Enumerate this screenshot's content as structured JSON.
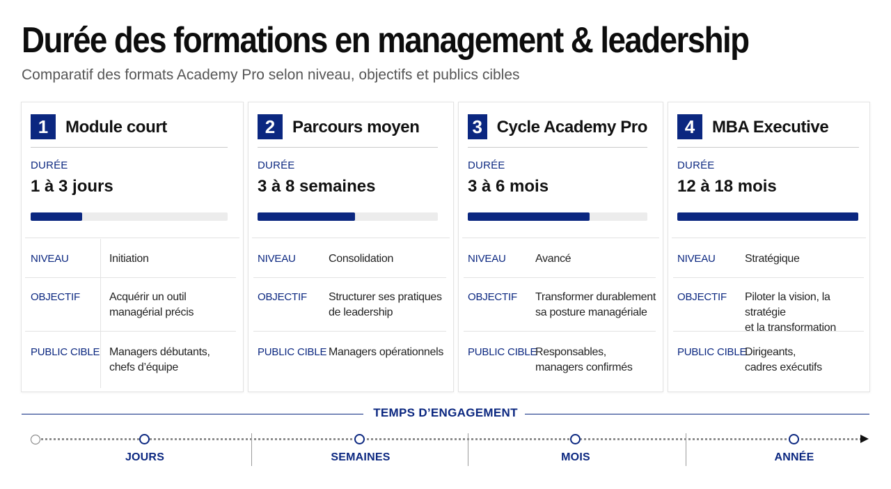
{
  "title": "Durée des formations en management & leadership",
  "subtitle": "Comparatif des formats Academy Pro selon niveau, objectifs et publics cibles",
  "accent_color": "#0b2780",
  "cards": [
    {
      "number": "1",
      "name": "Module court",
      "duration_label": "DURÉE",
      "duration": "1 à 3 jours",
      "duration_fill_fraction": 0.26,
      "rows": [
        {
          "label": "NIVEAU",
          "value": "Initiation"
        },
        {
          "label": "OBJECTIF",
          "value": "Acquérir un outil\nmanagérial précis"
        },
        {
          "label": "PUBLIC CIBLE",
          "value": "Managers débutants,\nchefs d’équipe"
        }
      ]
    },
    {
      "number": "2",
      "name": "Parcours moyen",
      "duration_label": "DURÉE",
      "duration": "3 à 8 semaines",
      "duration_fill_fraction": 0.54,
      "rows": [
        {
          "label": "NIVEAU",
          "value": "Consolidation"
        },
        {
          "label": "OBJECTIF",
          "value": "Structurer ses pratiques\nde leadership"
        },
        {
          "label": "PUBLIC CIBLE",
          "value": "Managers opérationnels"
        }
      ]
    },
    {
      "number": "3",
      "name": "Cycle Academy Pro",
      "duration_label": "DURÉE",
      "duration": "3 à 6 mois",
      "duration_fill_fraction": 0.68,
      "rows": [
        {
          "label": "NIVEAU",
          "value": "Avancé"
        },
        {
          "label": "OBJECTIF",
          "value": "Transformer durablement\nsa posture managériale"
        },
        {
          "label": "PUBLIC CIBLE",
          "value": "Responsables,\nmanagers confirmés"
        }
      ]
    },
    {
      "number": "4",
      "name": "MBA Executive",
      "duration_label": "DURÉE",
      "duration": "12 à 18 mois",
      "duration_fill_fraction": 1.0,
      "rows": [
        {
          "label": "NIVEAU",
          "value": "Stratégique"
        },
        {
          "label": "OBJECTIF",
          "value": "Piloter la vision, la stratégie\net la transformation"
        },
        {
          "label": "PUBLIC CIBLE",
          "value": "Dirigeants,\ncadres exécutifs"
        }
      ]
    }
  ],
  "timeline": {
    "title": "TEMPS D’ENGAGEMENT",
    "labels": [
      "JOURS",
      "SEMAINES",
      "MOIS",
      "ANNÉE"
    ]
  }
}
